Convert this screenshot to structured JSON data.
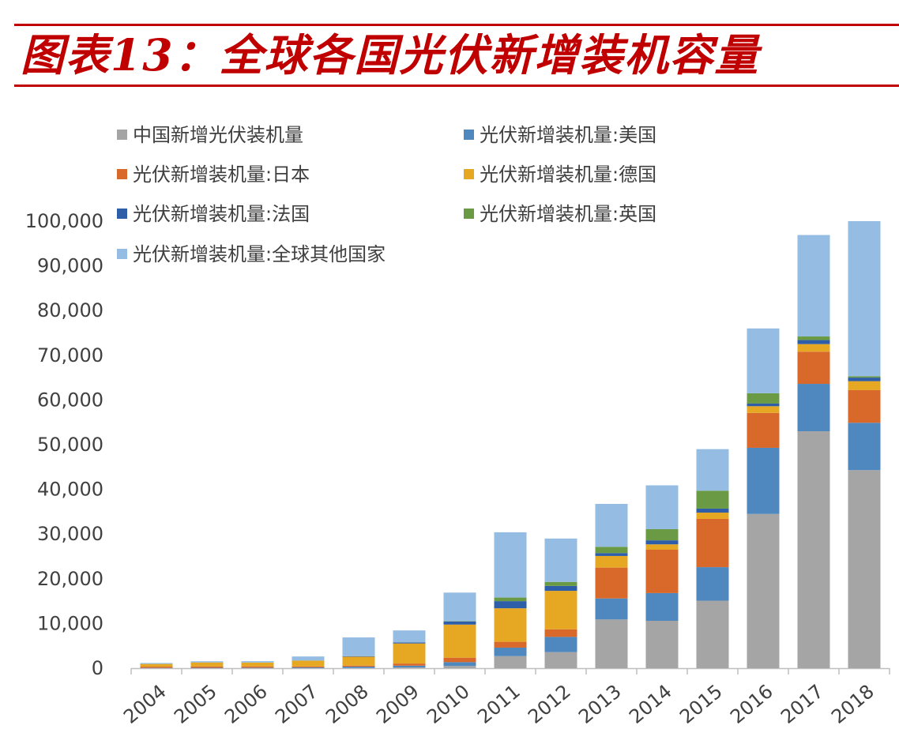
{
  "header": {
    "title": "图表13：全球各国光伏新增装机容量",
    "title_color": "#c00000"
  },
  "chart_data": {
    "type": "bar",
    "stacked": true,
    "title": "",
    "xlabel": "",
    "ylabel": "",
    "ylim": [
      0,
      100000
    ],
    "yticks": [
      0,
      10000,
      20000,
      30000,
      40000,
      50000,
      60000,
      70000,
      80000,
      90000,
      100000
    ],
    "ytick_labels": [
      "0",
      "10,000",
      "20,000",
      "30,000",
      "40,000",
      "50,000",
      "60,000",
      "70,000",
      "80,000",
      "90,000",
      "100,000"
    ],
    "categories": [
      "2004",
      "2005",
      "2006",
      "2007",
      "2008",
      "2009",
      "2010",
      "2011",
      "2012",
      "2013",
      "2014",
      "2015",
      "2016",
      "2017",
      "2018"
    ],
    "grid": false,
    "legend_position": "top-left",
    "series": [
      {
        "name": "中国新增光伏装机量",
        "color": "#a5a5a5",
        "values": [
          10,
          10,
          10,
          20,
          40,
          160,
          500,
          2700,
          3600,
          10900,
          10600,
          15100,
          34500,
          53000,
          44300
        ]
      },
      {
        "name": "光伏新增装机量:美国",
        "color": "#4e88bf",
        "values": [
          60,
          80,
          100,
          160,
          300,
          400,
          850,
          1900,
          3400,
          4700,
          6200,
          7500,
          14800,
          10600,
          10600
        ]
      },
      {
        "name": "光伏新增装机量:日本",
        "color": "#d9692b",
        "values": [
          270,
          290,
          290,
          210,
          230,
          480,
          1000,
          1300,
          1700,
          6900,
          9700,
          10800,
          7800,
          7200,
          7300
        ]
      },
      {
        "name": "光伏新增装机量:德国",
        "color": "#e6a823",
        "values": [
          600,
          900,
          850,
          1300,
          2000,
          4500,
          7400,
          7500,
          8600,
          2600,
          1200,
          1400,
          1500,
          1700,
          2000
        ]
      },
      {
        "name": "光伏新增装机量:法国",
        "color": "#2f5ea8",
        "values": [
          10,
          10,
          10,
          20,
          100,
          200,
          700,
          1600,
          1100,
          650,
          900,
          900,
          600,
          900,
          800
        ]
      },
      {
        "name": "光伏新增装机量:英国",
        "color": "#6a9b44",
        "values": [
          10,
          10,
          10,
          10,
          10,
          10,
          60,
          800,
          900,
          1400,
          2500,
          4000,
          2300,
          800,
          300
        ]
      },
      {
        "name": "光伏新增装机量:全球其他国家",
        "color": "#95bde3",
        "values": [
          200,
          250,
          300,
          900,
          4200,
          2700,
          6400,
          14600,
          9700,
          9600,
          9800,
          9300,
          14500,
          22700,
          34700
        ]
      }
    ]
  }
}
